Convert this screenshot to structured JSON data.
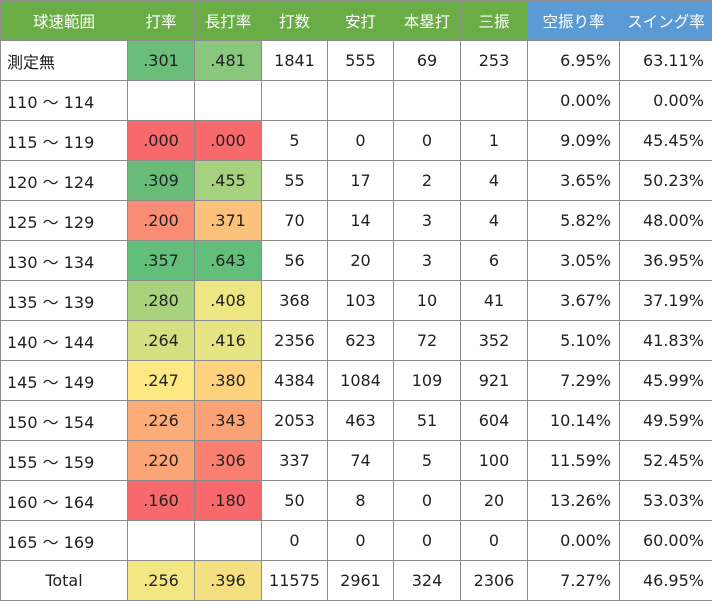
{
  "colors": {
    "header_green": "#6aac46",
    "header_blue": "#5b9bd5",
    "border": "#8c8c8c"
  },
  "headers": [
    {
      "label": "球速範囲",
      "color": "#6aac46"
    },
    {
      "label": "打率",
      "color": "#6aac46"
    },
    {
      "label": "長打率",
      "color": "#6aac46"
    },
    {
      "label": "打数",
      "color": "#6aac46"
    },
    {
      "label": "安打",
      "color": "#6aac46"
    },
    {
      "label": "本塁打",
      "color": "#6aac46"
    },
    {
      "label": "三振",
      "color": "#6aac46"
    },
    {
      "label": "空振り率",
      "color": "#5b9bd5"
    },
    {
      "label": "スイング率",
      "color": "#5b9bd5"
    }
  ],
  "rows": [
    {
      "range": "測定無",
      "avg": ".301",
      "avg_color": "#6dbd7a",
      "slg": ".481",
      "slg_color": "#88c77c",
      "ab": "1841",
      "h": "555",
      "hr": "69",
      "so": "253",
      "whiff": "6.95%",
      "swing": "63.11%"
    },
    {
      "range": "110 ～ 114",
      "avg": "",
      "avg_color": "",
      "slg": "",
      "slg_color": "",
      "ab": "",
      "h": "",
      "hr": "",
      "so": "",
      "whiff": "0.00%",
      "swing": "0.00%"
    },
    {
      "range": "115 ～ 119",
      "avg": ".000",
      "avg_color": "#f8696b",
      "slg": ".000",
      "slg_color": "#f8696b",
      "ab": "5",
      "h": "0",
      "hr": "0",
      "so": "1",
      "whiff": "9.09%",
      "swing": "45.45%"
    },
    {
      "range": "120 ～ 124",
      "avg": ".309",
      "avg_color": "#69bc78",
      "slg": ".455",
      "slg_color": "#a6d27f",
      "ab": "55",
      "h": "17",
      "hr": "2",
      "so": "4",
      "whiff": "3.65%",
      "swing": "50.23%"
    },
    {
      "range": "125 ～ 129",
      "avg": ".200",
      "avg_color": "#f98d73",
      "slg": ".371",
      "slg_color": "#fcc27c",
      "ab": "70",
      "h": "14",
      "hr": "3",
      "so": "4",
      "whiff": "5.82%",
      "swing": "48.00%"
    },
    {
      "range": "130 ～ 134",
      "avg": ".357",
      "avg_color": "#63be7b",
      "slg": ".643",
      "slg_color": "#63be7b",
      "ab": "56",
      "h": "20",
      "hr": "3",
      "so": "6",
      "whiff": "3.05%",
      "swing": "36.95%"
    },
    {
      "range": "135 ～ 139",
      "avg": ".280",
      "avg_color": "#a9d27f",
      "slg": ".408",
      "slg_color": "#eee683",
      "ab": "368",
      "h": "103",
      "hr": "10",
      "so": "41",
      "whiff": "3.67%",
      "swing": "37.19%"
    },
    {
      "range": "140 ～ 144",
      "avg": ".264",
      "avg_color": "#d5df82",
      "slg": ".416",
      "slg_color": "#e6e483",
      "ab": "2356",
      "h": "623",
      "hr": "72",
      "so": "352",
      "whiff": "5.10%",
      "swing": "41.83%"
    },
    {
      "range": "145 ～ 149",
      "avg": ".247",
      "avg_color": "#fde883",
      "slg": ".380",
      "slg_color": "#fdd27f",
      "ab": "4384",
      "h": "1084",
      "hr": "109",
      "so": "921",
      "whiff": "7.29%",
      "swing": "45.99%"
    },
    {
      "range": "150 ～ 154",
      "avg": ".226",
      "avg_color": "#fbac78",
      "slg": ".343",
      "slg_color": "#fba376",
      "ab": "2053",
      "h": "463",
      "hr": "51",
      "so": "604",
      "whiff": "10.14%",
      "swing": "49.59%"
    },
    {
      "range": "155 ～ 159",
      "avg": ".220",
      "avg_color": "#fba476",
      "slg": ".306",
      "slg_color": "#f98071",
      "ab": "337",
      "h": "74",
      "hr": "5",
      "so": "100",
      "whiff": "11.59%",
      "swing": "52.45%"
    },
    {
      "range": "160 ～ 164",
      "avg": ".160",
      "avg_color": "#f8696b",
      "slg": ".180",
      "slg_color": "#f8696b",
      "ab": "50",
      "h": "8",
      "hr": "0",
      "so": "20",
      "whiff": "13.26%",
      "swing": "53.03%"
    },
    {
      "range": "165 ～ 169",
      "avg": "",
      "avg_color": "",
      "slg": "",
      "slg_color": "",
      "ab": "0",
      "h": "0",
      "hr": "0",
      "so": "0",
      "whiff": "0.00%",
      "swing": "60.00%"
    }
  ],
  "total": {
    "range": "Total",
    "avg": ".256",
    "avg_color": "#f2e783",
    "slg": ".396",
    "slg_color": "#f4e081",
    "ab": "11575",
    "h": "2961",
    "hr": "324",
    "so": "2306",
    "whiff": "7.27%",
    "swing": "46.95%"
  }
}
